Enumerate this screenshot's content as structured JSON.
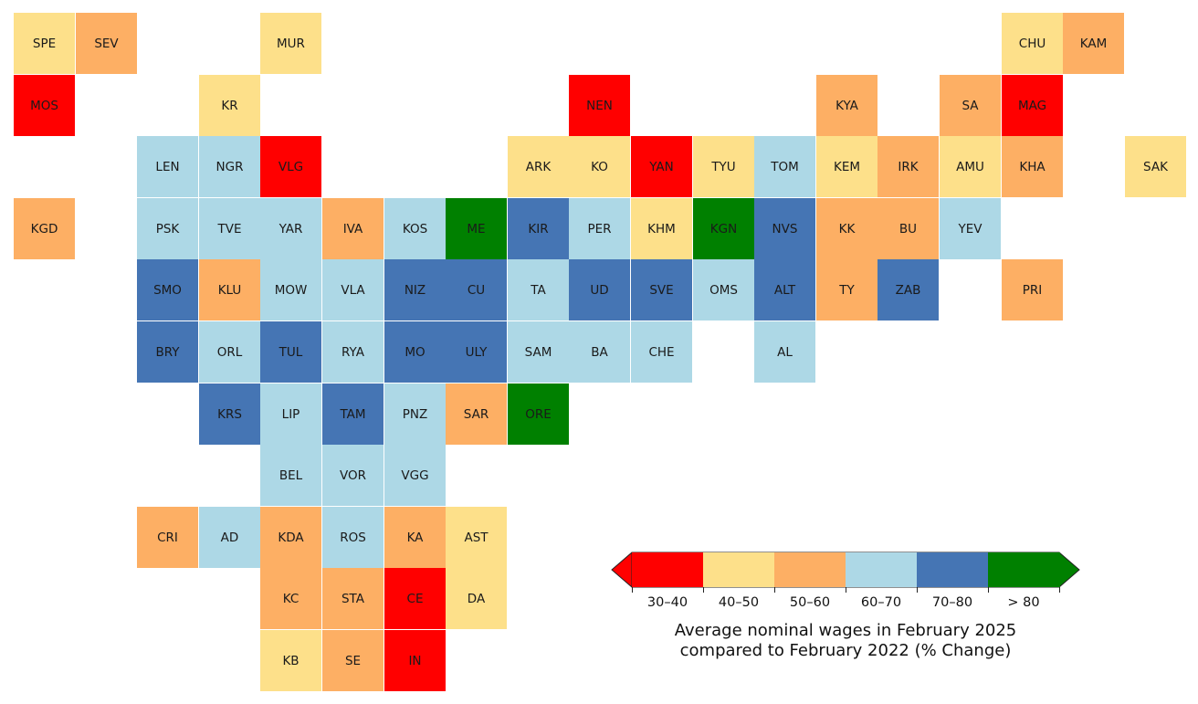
{
  "colors": {
    "30-40": "#ff0000",
    "40-50": "#fde08a",
    "50-60": "#fdaf64",
    "60-70": "#add8e6",
    "70-80": "#4575b4",
    ">80": "#008000"
  },
  "regions": [
    {
      "code": "SPE",
      "row": 0,
      "col": 0,
      "cat": "40-50"
    },
    {
      "code": "SEV",
      "row": 0,
      "col": 1,
      "cat": "50-60"
    },
    {
      "code": "MUR",
      "row": 0,
      "col": 4,
      "cat": "40-50"
    },
    {
      "code": "CHU",
      "row": 0,
      "col": 16,
      "cat": "40-50"
    },
    {
      "code": "KAM",
      "row": 0,
      "col": 17,
      "cat": "50-60"
    },
    {
      "code": "MOS",
      "row": 1,
      "col": 0,
      "cat": "30-40"
    },
    {
      "code": "KR",
      "row": 1,
      "col": 3,
      "cat": "40-50"
    },
    {
      "code": "NEN",
      "row": 1,
      "col": 9,
      "cat": "30-40"
    },
    {
      "code": "KYA",
      "row": 1,
      "col": 13,
      "cat": "50-60"
    },
    {
      "code": "SA",
      "row": 1,
      "col": 15,
      "cat": "50-60"
    },
    {
      "code": "MAG",
      "row": 1,
      "col": 16,
      "cat": "30-40"
    },
    {
      "code": "LEN",
      "row": 2,
      "col": 2,
      "cat": "60-70"
    },
    {
      "code": "NGR",
      "row": 2,
      "col": 3,
      "cat": "60-70"
    },
    {
      "code": "VLG",
      "row": 2,
      "col": 4,
      "cat": "30-40"
    },
    {
      "code": "ARK",
      "row": 2,
      "col": 8,
      "cat": "40-50"
    },
    {
      "code": "KO",
      "row": 2,
      "col": 9,
      "cat": "40-50"
    },
    {
      "code": "YAN",
      "row": 2,
      "col": 10,
      "cat": "30-40"
    },
    {
      "code": "TYU",
      "row": 2,
      "col": 11,
      "cat": "40-50"
    },
    {
      "code": "TOM",
      "row": 2,
      "col": 12,
      "cat": "60-70"
    },
    {
      "code": "KEM",
      "row": 2,
      "col": 13,
      "cat": "40-50"
    },
    {
      "code": "IRK",
      "row": 2,
      "col": 14,
      "cat": "50-60"
    },
    {
      "code": "AMU",
      "row": 2,
      "col": 15,
      "cat": "40-50"
    },
    {
      "code": "KHA",
      "row": 2,
      "col": 16,
      "cat": "50-60"
    },
    {
      "code": "SAK",
      "row": 2,
      "col": 18,
      "cat": "40-50"
    },
    {
      "code": "KGD",
      "row": 3,
      "col": 0,
      "cat": "50-60"
    },
    {
      "code": "PSK",
      "row": 3,
      "col": 2,
      "cat": "60-70"
    },
    {
      "code": "TVE",
      "row": 3,
      "col": 3,
      "cat": "60-70"
    },
    {
      "code": "YAR",
      "row": 3,
      "col": 4,
      "cat": "60-70"
    },
    {
      "code": "IVA",
      "row": 3,
      "col": 5,
      "cat": "50-60"
    },
    {
      "code": "KOS",
      "row": 3,
      "col": 6,
      "cat": "60-70"
    },
    {
      "code": "ME",
      "row": 3,
      "col": 7,
      "cat": ">80"
    },
    {
      "code": "KIR",
      "row": 3,
      "col": 8,
      "cat": "70-80"
    },
    {
      "code": "PER",
      "row": 3,
      "col": 9,
      "cat": "60-70"
    },
    {
      "code": "KHM",
      "row": 3,
      "col": 10,
      "cat": "40-50"
    },
    {
      "code": "KGN",
      "row": 3,
      "col": 11,
      "cat": ">80"
    },
    {
      "code": "NVS",
      "row": 3,
      "col": 12,
      "cat": "70-80"
    },
    {
      "code": "KK",
      "row": 3,
      "col": 13,
      "cat": "50-60"
    },
    {
      "code": "BU",
      "row": 3,
      "col": 14,
      "cat": "50-60"
    },
    {
      "code": "YEV",
      "row": 3,
      "col": 15,
      "cat": "60-70"
    },
    {
      "code": "SMO",
      "row": 4,
      "col": 2,
      "cat": "70-80"
    },
    {
      "code": "KLU",
      "row": 4,
      "col": 3,
      "cat": "50-60"
    },
    {
      "code": "MOW",
      "row": 4,
      "col": 4,
      "cat": "60-70"
    },
    {
      "code": "VLA",
      "row": 4,
      "col": 5,
      "cat": "60-70"
    },
    {
      "code": "NIZ",
      "row": 4,
      "col": 6,
      "cat": "70-80"
    },
    {
      "code": "CU",
      "row": 4,
      "col": 7,
      "cat": "70-80"
    },
    {
      "code": "TA",
      "row": 4,
      "col": 8,
      "cat": "60-70"
    },
    {
      "code": "UD",
      "row": 4,
      "col": 9,
      "cat": "70-80"
    },
    {
      "code": "SVE",
      "row": 4,
      "col": 10,
      "cat": "70-80"
    },
    {
      "code": "OMS",
      "row": 4,
      "col": 11,
      "cat": "60-70"
    },
    {
      "code": "ALT",
      "row": 4,
      "col": 12,
      "cat": "70-80"
    },
    {
      "code": "TY",
      "row": 4,
      "col": 13,
      "cat": "50-60"
    },
    {
      "code": "ZAB",
      "row": 4,
      "col": 14,
      "cat": "70-80"
    },
    {
      "code": "PRI",
      "row": 4,
      "col": 16,
      "cat": "50-60"
    },
    {
      "code": "BRY",
      "row": 5,
      "col": 2,
      "cat": "70-80"
    },
    {
      "code": "ORL",
      "row": 5,
      "col": 3,
      "cat": "60-70"
    },
    {
      "code": "TUL",
      "row": 5,
      "col": 4,
      "cat": "70-80"
    },
    {
      "code": "RYA",
      "row": 5,
      "col": 5,
      "cat": "60-70"
    },
    {
      "code": "MO",
      "row": 5,
      "col": 6,
      "cat": "70-80"
    },
    {
      "code": "ULY",
      "row": 5,
      "col": 7,
      "cat": "70-80"
    },
    {
      "code": "SAM",
      "row": 5,
      "col": 8,
      "cat": "60-70"
    },
    {
      "code": "BA",
      "row": 5,
      "col": 9,
      "cat": "60-70"
    },
    {
      "code": "CHE",
      "row": 5,
      "col": 10,
      "cat": "60-70"
    },
    {
      "code": "AL",
      "row": 5,
      "col": 12,
      "cat": "60-70"
    },
    {
      "code": "KRS",
      "row": 6,
      "col": 3,
      "cat": "70-80"
    },
    {
      "code": "LIP",
      "row": 6,
      "col": 4,
      "cat": "60-70"
    },
    {
      "code": "TAM",
      "row": 6,
      "col": 5,
      "cat": "70-80"
    },
    {
      "code": "PNZ",
      "row": 6,
      "col": 6,
      "cat": "60-70"
    },
    {
      "code": "SAR",
      "row": 6,
      "col": 7,
      "cat": "50-60"
    },
    {
      "code": "ORE",
      "row": 6,
      "col": 8,
      "cat": ">80"
    },
    {
      "code": "BEL",
      "row": 7,
      "col": 4,
      "cat": "60-70"
    },
    {
      "code": "VOR",
      "row": 7,
      "col": 5,
      "cat": "60-70"
    },
    {
      "code": "VGG",
      "row": 7,
      "col": 6,
      "cat": "60-70"
    },
    {
      "code": "CRI",
      "row": 8,
      "col": 2,
      "cat": "50-60"
    },
    {
      "code": "AD",
      "row": 8,
      "col": 3,
      "cat": "60-70"
    },
    {
      "code": "KDA",
      "row": 8,
      "col": 4,
      "cat": "50-60"
    },
    {
      "code": "ROS",
      "row": 8,
      "col": 5,
      "cat": "60-70"
    },
    {
      "code": "KA",
      "row": 8,
      "col": 6,
      "cat": "50-60"
    },
    {
      "code": "AST",
      "row": 8,
      "col": 7,
      "cat": "40-50"
    },
    {
      "code": "KC",
      "row": 9,
      "col": 4,
      "cat": "50-60"
    },
    {
      "code": "STA",
      "row": 9,
      "col": 5,
      "cat": "50-60"
    },
    {
      "code": "CE",
      "row": 9,
      "col": 6,
      "cat": "30-40"
    },
    {
      "code": "DA",
      "row": 9,
      "col": 7,
      "cat": "40-50"
    },
    {
      "code": "KB",
      "row": 10,
      "col": 4,
      "cat": "40-50"
    },
    {
      "code": "SE",
      "row": 10,
      "col": 5,
      "cat": "50-60"
    },
    {
      "code": "IN",
      "row": 10,
      "col": 6,
      "cat": "30-40"
    }
  ],
  "legend": {
    "categories": [
      "30-40",
      "40-50",
      "50-60",
      "60-70",
      "70-80",
      ">80"
    ],
    "labels": [
      "30–40",
      "40–50",
      "50–60",
      "60–70",
      "70–80",
      "> 80"
    ],
    "title_line1": "Average nominal wages in February 2025",
    "title_line2": "compared to February 2022 (% Change)"
  }
}
